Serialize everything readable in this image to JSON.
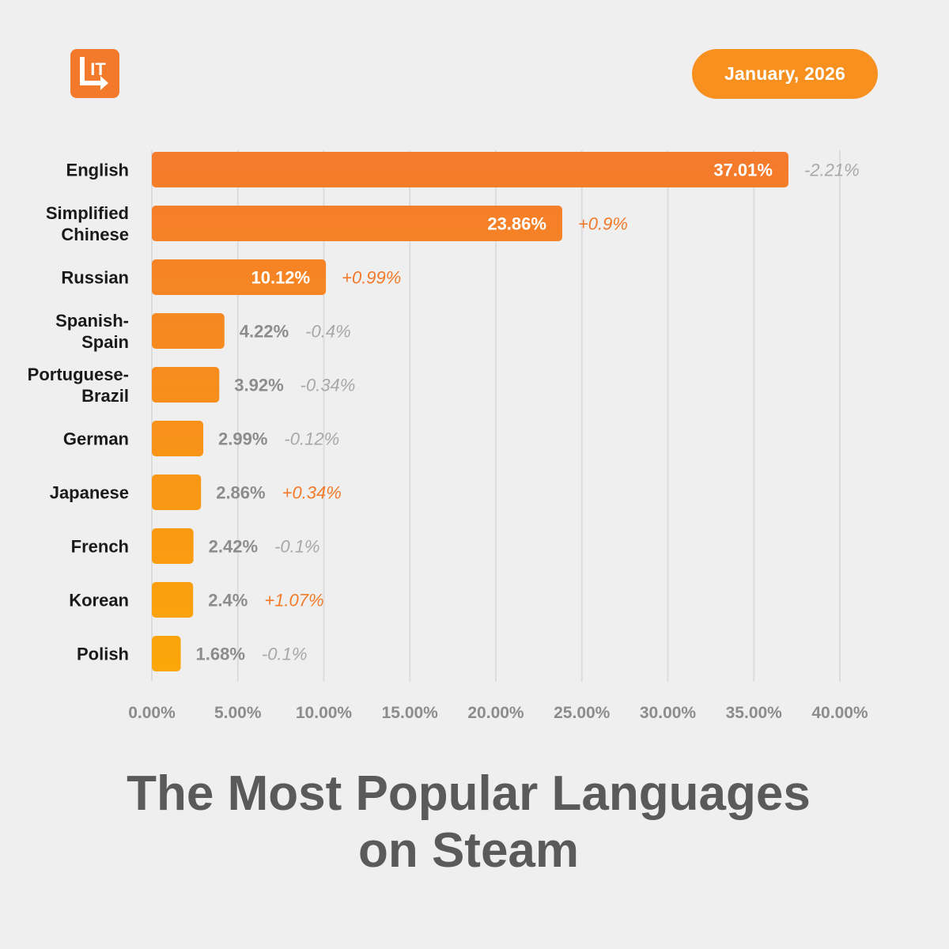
{
  "header": {
    "date_label": "January, 2026",
    "logo_text": "IT",
    "logo_color": "#f27a2a",
    "date_pill_color": "#f7901f"
  },
  "title": {
    "line1": "The Most Popular Languages",
    "line2": "on Steam"
  },
  "chart_data": {
    "type": "bar",
    "orientation": "horizontal",
    "categories": [
      [
        "English"
      ],
      [
        "Simplified",
        "Chinese"
      ],
      [
        "Russian"
      ],
      [
        "Spanish-",
        "Spain"
      ],
      [
        "Portuguese-",
        "Brazil"
      ],
      [
        "German"
      ],
      [
        "Japanese"
      ],
      [
        "French"
      ],
      [
        "Korean"
      ],
      [
        "Polish"
      ]
    ],
    "values": [
      37.01,
      23.86,
      10.12,
      4.22,
      3.92,
      2.99,
      2.86,
      2.42,
      2.4,
      1.68
    ],
    "value_labels": [
      "37.01%",
      "23.86%",
      "10.12%",
      "4.22%",
      "3.92%",
      "2.99%",
      "2.86%",
      "2.42%",
      "2.4%",
      "1.68%"
    ],
    "change_labels": [
      "-2.21%",
      "+0.9%",
      "+0.99%",
      "-0.4%",
      "-0.34%",
      "-0.12%",
      "+0.34%",
      "-0.1%",
      "+1.07%",
      "-0.1%"
    ],
    "xlim": [
      0,
      40
    ],
    "x_ticks": [
      0,
      5,
      10,
      15,
      20,
      25,
      30,
      35,
      40
    ],
    "x_tick_labels": [
      "0.00%",
      "5.00%",
      "10.00%",
      "15.00%",
      "20.00%",
      "25.00%",
      "30.00%",
      "35.00%",
      "40.00%"
    ],
    "grid": "vertical",
    "colors": {
      "bar_top": "#f47a2c",
      "bar_bottom": "#fba60a",
      "positive_change": "#f27a2a",
      "negative_change": "#a8a8a8",
      "outside_value": "#8c8c8c",
      "inside_value": "#ffffff",
      "category_label": "#1a1a1a",
      "tick_label": "#8c8c8c",
      "grid": "#dcdcdc"
    }
  }
}
